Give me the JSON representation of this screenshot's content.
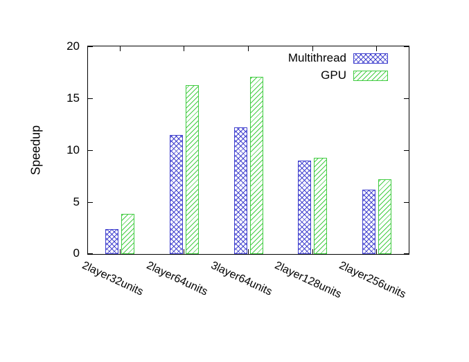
{
  "chart_data": {
    "type": "bar",
    "title": "",
    "xlabel": "",
    "ylabel": "Speedup",
    "ylim": [
      0,
      20
    ],
    "yticks": [
      0,
      5,
      10,
      15,
      20
    ],
    "grid": false,
    "legend_position": "top-right-inside",
    "categories": [
      "2layer32units",
      "2layer64units",
      "3layer64units",
      "2layer128units",
      "2layer256units"
    ],
    "series": [
      {
        "name": "Multithread",
        "color": "#4343cf",
        "pattern": "crosshatch",
        "values": [
          2.4,
          11.5,
          12.2,
          9.0,
          6.2
        ]
      },
      {
        "name": "GPU",
        "color": "#41cc41",
        "pattern": "diagonal",
        "values": [
          3.9,
          16.3,
          17.1,
          9.3,
          7.2
        ]
      }
    ]
  }
}
